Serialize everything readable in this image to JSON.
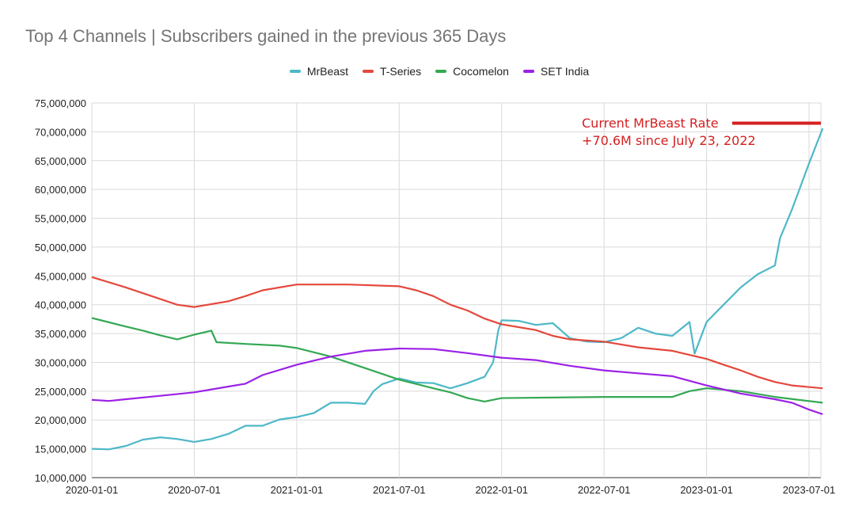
{
  "chart_data": {
    "type": "line",
    "title": "Top 4 Channels | Subscribers gained in the previous 365 Days",
    "xlabel": "",
    "ylabel": "",
    "x_unit": "months since 2020-01-01",
    "xlim": [
      0,
      42.8
    ],
    "ylim": [
      10000000,
      75000000
    ],
    "y_ticks": [
      10000000,
      15000000,
      20000000,
      25000000,
      30000000,
      35000000,
      40000000,
      45000000,
      50000000,
      55000000,
      60000000,
      65000000,
      70000000,
      75000000
    ],
    "y_tick_labels": [
      "10,000,000",
      "15,000,000",
      "20,000,000",
      "25,000,000",
      "30,000,000",
      "35,000,000",
      "40,000,000",
      "45,000,000",
      "50,000,000",
      "55,000,000",
      "60,000,000",
      "65,000,000",
      "70,000,000",
      "75,000,000"
    ],
    "x_ticks": [
      0,
      6,
      12,
      18,
      24,
      30,
      36,
      42
    ],
    "x_tick_labels": [
      "2020-01-01",
      "2020-07-01",
      "2021-01-01",
      "2021-07-01",
      "2022-01-01",
      "2022-07-01",
      "2023-01-01",
      "2023-07-01"
    ],
    "grid": true,
    "legend_position": "top-center",
    "series": [
      {
        "name": "MrBeast",
        "color": "#4db8c8",
        "points": [
          [
            0,
            15
          ],
          [
            1,
            14.9
          ],
          [
            2,
            15.5
          ],
          [
            3,
            16.6
          ],
          [
            4,
            17
          ],
          [
            5,
            16.7
          ],
          [
            6,
            16.2
          ],
          [
            7,
            16.7
          ],
          [
            8,
            17.6
          ],
          [
            9,
            19
          ],
          [
            10,
            19
          ],
          [
            11,
            20.1
          ],
          [
            12,
            20.5
          ],
          [
            13,
            21.2
          ],
          [
            14,
            23
          ],
          [
            15,
            23
          ],
          [
            16,
            22.8
          ],
          [
            16.5,
            25
          ],
          [
            17,
            26.2
          ],
          [
            18,
            27.2
          ],
          [
            19,
            26.5
          ],
          [
            20,
            26.4
          ],
          [
            21,
            25.5
          ],
          [
            22,
            26.4
          ],
          [
            23,
            27.5
          ],
          [
            23.5,
            30
          ],
          [
            23.8,
            35.5
          ],
          [
            24,
            37.3
          ],
          [
            25,
            37.2
          ],
          [
            26,
            36.5
          ],
          [
            27,
            36.8
          ],
          [
            28,
            34.2
          ],
          [
            29,
            33.6
          ],
          [
            30,
            33.5
          ],
          [
            31,
            34.2
          ],
          [
            32,
            36
          ],
          [
            33,
            35
          ],
          [
            34,
            34.6
          ],
          [
            35,
            37
          ],
          [
            35.3,
            31.5
          ],
          [
            36,
            37
          ],
          [
            37,
            40
          ],
          [
            38,
            43
          ],
          [
            39,
            45.3
          ],
          [
            40,
            46.8
          ],
          [
            40.3,
            51.5
          ],
          [
            41,
            56.5
          ],
          [
            42,
            64.5
          ],
          [
            42.8,
            70.6
          ]
        ]
      },
      {
        "name": "T-Series",
        "color": "#e4483c",
        "points": [
          [
            0,
            44.8
          ],
          [
            2,
            43
          ],
          [
            4,
            41
          ],
          [
            5,
            40
          ],
          [
            6,
            39.6
          ],
          [
            8,
            40.6
          ],
          [
            9,
            41.5
          ],
          [
            10,
            42.5
          ],
          [
            12,
            43.5
          ],
          [
            15,
            43.5
          ],
          [
            18,
            43.2
          ],
          [
            19,
            42.5
          ],
          [
            20,
            41.5
          ],
          [
            21,
            40
          ],
          [
            22,
            39
          ],
          [
            23,
            37.6
          ],
          [
            24,
            36.6
          ],
          [
            26,
            35.6
          ],
          [
            27,
            34.6
          ],
          [
            28,
            34
          ],
          [
            30,
            33.6
          ],
          [
            32,
            32.6
          ],
          [
            34,
            32
          ],
          [
            36,
            30.6
          ],
          [
            37,
            29.6
          ],
          [
            38,
            28.6
          ],
          [
            39,
            27.5
          ],
          [
            40,
            26.6
          ],
          [
            41,
            26
          ],
          [
            42.8,
            25.5
          ]
        ]
      },
      {
        "name": "Cocomelon",
        "color": "#34a853",
        "points": [
          [
            0,
            37.7
          ],
          [
            2,
            36.2
          ],
          [
            3,
            35.5
          ],
          [
            4,
            34.7
          ],
          [
            5,
            34
          ],
          [
            6,
            34.8
          ],
          [
            7,
            35.5
          ],
          [
            7.3,
            33.5
          ],
          [
            9,
            33.2
          ],
          [
            11,
            32.9
          ],
          [
            12,
            32.5
          ],
          [
            14,
            31
          ],
          [
            16,
            29
          ],
          [
            18,
            27
          ],
          [
            20,
            25.5
          ],
          [
            21,
            24.8
          ],
          [
            22,
            23.8
          ],
          [
            23,
            23.2
          ],
          [
            24,
            23.8
          ],
          [
            30,
            24
          ],
          [
            34,
            24
          ],
          [
            35,
            25
          ],
          [
            36,
            25.5
          ],
          [
            38,
            25
          ],
          [
            40,
            24
          ],
          [
            42.8,
            23
          ]
        ]
      },
      {
        "name": "SET India",
        "color": "#9b21e6",
        "points": [
          [
            0,
            23.5
          ],
          [
            1,
            23.3
          ],
          [
            2,
            23.6
          ],
          [
            4,
            24.2
          ],
          [
            6,
            24.8
          ],
          [
            8,
            25.8
          ],
          [
            9,
            26.3
          ],
          [
            10,
            27.8
          ],
          [
            12,
            29.6
          ],
          [
            14,
            31
          ],
          [
            16,
            32
          ],
          [
            18,
            32.4
          ],
          [
            20,
            32.3
          ],
          [
            22,
            31.6
          ],
          [
            24,
            30.8
          ],
          [
            26,
            30.4
          ],
          [
            28,
            29.4
          ],
          [
            30,
            28.6
          ],
          [
            32,
            28.1
          ],
          [
            34,
            27.6
          ],
          [
            36,
            26
          ],
          [
            38,
            24.6
          ],
          [
            40,
            23.6
          ],
          [
            41,
            23
          ],
          [
            42,
            21.8
          ],
          [
            42.8,
            21
          ]
        ]
      }
    ],
    "annotation": {
      "line1": "Current MrBeast Rate",
      "line2": "+70.6M since July 23, 2022",
      "value": 71500000,
      "color": "#d42020"
    }
  }
}
